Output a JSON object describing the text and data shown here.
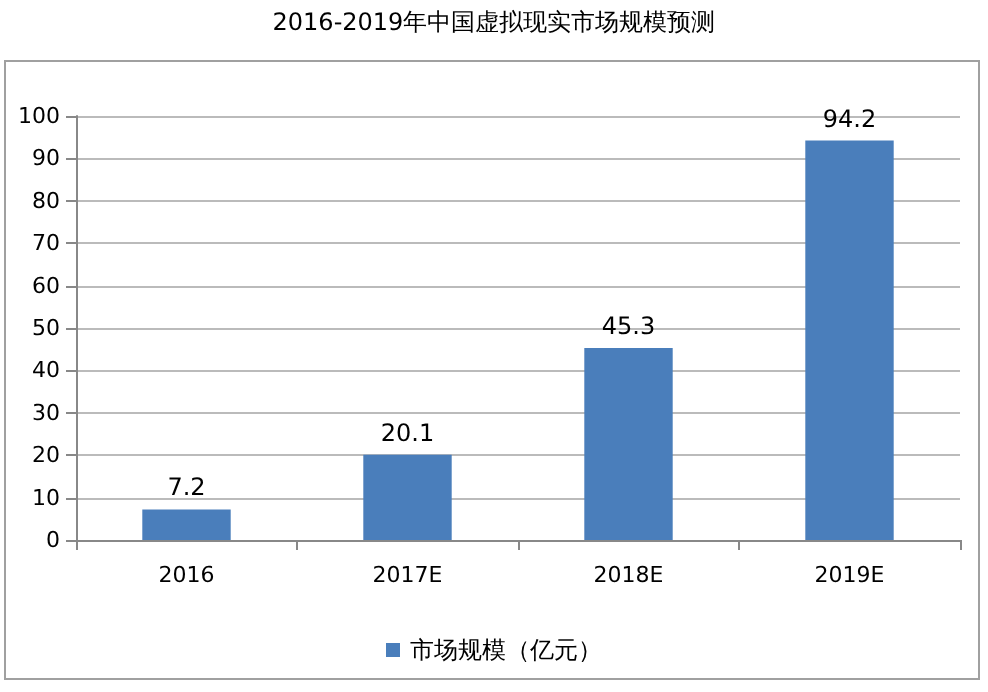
{
  "chart_data": {
    "type": "bar",
    "title": "2016-2019年中国虚拟现实市场规模预测",
    "categories": [
      "2016",
      "2017E",
      "2018E",
      "2019E"
    ],
    "series": [
      {
        "name": "市场规模（亿元）",
        "color": "#4a7ebb",
        "values": [
          7.2,
          20.1,
          45.3,
          94.2
        ]
      }
    ],
    "ylim": [
      0,
      100
    ],
    "yticks": [
      0,
      10,
      20,
      30,
      40,
      50,
      60,
      70,
      80,
      90,
      100
    ],
    "grid": "y",
    "legend": "bottom",
    "data_labels": true
  }
}
